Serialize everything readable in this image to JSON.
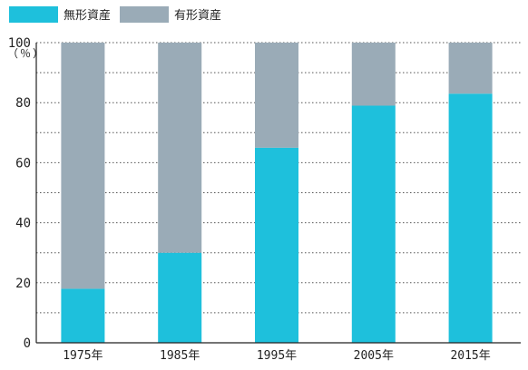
{
  "legend": [
    {
      "label": "無形資産",
      "color": "#1ec0dc"
    },
    {
      "label": "有形資産",
      "color": "#9aabb7"
    }
  ],
  "unit_label": "（％）",
  "chart_data": {
    "type": "bar",
    "stacked": true,
    "categories": [
      "1975年",
      "1985年",
      "1995年",
      "2005年",
      "2015年"
    ],
    "series": [
      {
        "name": "無形資産",
        "values": [
          18,
          30,
          65,
          79,
          83
        ],
        "color": "#1ec0dc"
      },
      {
        "name": "有形資産",
        "values": [
          82,
          70,
          35,
          21,
          17
        ],
        "color": "#9aabb7"
      }
    ],
    "y_ticks": [
      0,
      20,
      40,
      60,
      80,
      100
    ],
    "ylim": [
      0,
      100
    ],
    "grid": "dotted"
  }
}
